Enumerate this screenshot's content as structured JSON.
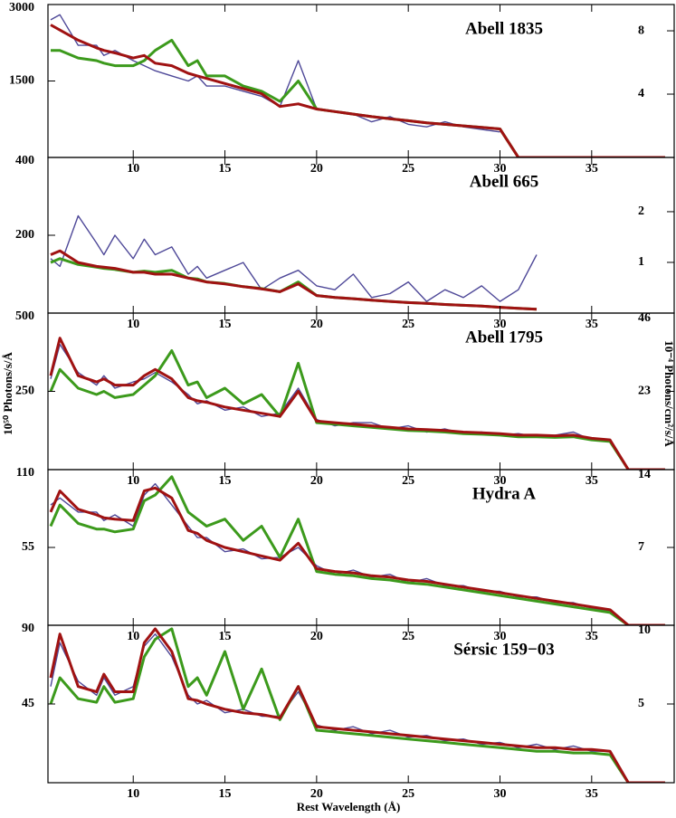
{
  "xlabel": "Rest Wavelength (Å)",
  "ylabel": "10⁵⁰ Photons/s/Å",
  "y2label": "10⁻⁴ Photons/cm²/s/Å",
  "chart_data": [
    {
      "type": "line",
      "title": "Abell 1835",
      "x": [
        5.5,
        6,
        7,
        8,
        8.4,
        9,
        10,
        10.6,
        11.2,
        12.1,
        13,
        13.5,
        14,
        15,
        16,
        17,
        18,
        19,
        20,
        21,
        22,
        23,
        24,
        25,
        26,
        27,
        28,
        29,
        30,
        31,
        32,
        33,
        34,
        35,
        36,
        37,
        39
      ],
      "xlim": [
        5.35,
        39.5
      ],
      "xticks": [
        10,
        15,
        20,
        25,
        30,
        35
      ],
      "ylim": [
        0,
        3000
      ],
      "yticks": [
        1500,
        3000
      ],
      "y2lim": [
        0,
        9.66
      ],
      "y2ticks": [
        4,
        8
      ],
      "series": [
        {
          "color": "#4e4898",
          "values": [
            2700,
            2800,
            2200,
            2200,
            2000,
            2100,
            1900,
            1800,
            1700,
            1600,
            1500,
            1600,
            1400,
            1400,
            1300,
            1200,
            1000,
            1900,
            950,
            900,
            850,
            700,
            800,
            650,
            600,
            700,
            600,
            550,
            500,
            null,
            null,
            null,
            null,
            null,
            null,
            null,
            null
          ]
        },
        {
          "color": "#3c9a1c",
          "values": [
            2100,
            2100,
            1950,
            1900,
            1850,
            1800,
            1800,
            1900,
            2100,
            2300,
            1800,
            1900,
            1600,
            1600,
            1400,
            1300,
            1100,
            1500,
            950,
            900,
            850,
            800,
            760,
            720,
            680,
            650,
            620,
            590,
            560,
            0,
            0,
            0,
            0,
            0,
            0,
            0,
            0
          ]
        },
        {
          "color": "#a01212",
          "values": [
            2600,
            2500,
            2300,
            2150,
            2100,
            2050,
            1950,
            2000,
            1850,
            1800,
            1650,
            1600,
            1550,
            1450,
            1350,
            1250,
            1000,
            1050,
            950,
            900,
            850,
            800,
            760,
            720,
            680,
            650,
            620,
            590,
            560,
            0,
            0,
            0,
            0,
            0,
            0,
            0,
            0
          ]
        }
      ]
    },
    {
      "type": "line",
      "title": "Abell 665",
      "x": [
        5.5,
        6,
        7,
        8,
        8.4,
        9,
        10,
        10.6,
        11.2,
        12.1,
        13,
        13.5,
        14,
        15,
        16,
        17,
        18,
        19,
        20,
        21,
        22,
        23,
        24,
        25,
        26,
        27,
        28,
        29,
        30,
        31,
        32,
        33,
        34,
        35,
        36,
        37,
        39
      ],
      "xlim": [
        5.35,
        39.5
      ],
      "xticks": [
        10,
        15,
        20,
        25,
        30,
        35
      ],
      "ylim": [
        0,
        400
      ],
      "yticks": [
        200,
        400
      ],
      "y2lim": [
        0,
        3.07
      ],
      "y2ticks": [
        1,
        2
      ],
      "series": [
        {
          "color": "#4e4898",
          "values": [
            140,
            120,
            250,
            180,
            150,
            200,
            140,
            190,
            150,
            170,
            100,
            120,
            90,
            110,
            130,
            60,
            90,
            110,
            70,
            60,
            100,
            40,
            50,
            80,
            30,
            60,
            40,
            70,
            30,
            60,
            150,
            null,
            null,
            null,
            null,
            null,
            null
          ]
        },
        {
          "color": "#3c9a1c",
          "values": [
            130,
            140,
            125,
            118,
            115,
            112,
            105,
            108,
            105,
            110,
            90,
            88,
            80,
            76,
            68,
            63,
            55,
            80,
            45,
            40,
            37,
            33,
            30,
            27,
            25,
            22,
            20,
            18,
            15,
            12,
            10,
            null,
            null,
            null,
            null,
            null,
            null
          ]
        },
        {
          "color": "#a01212",
          "values": [
            150,
            160,
            130,
            120,
            118,
            115,
            105,
            105,
            100,
            100,
            90,
            85,
            80,
            75,
            68,
            62,
            55,
            75,
            45,
            40,
            37,
            33,
            30,
            27,
            25,
            22,
            20,
            18,
            15,
            12,
            10,
            null,
            null,
            null,
            null,
            null,
            null
          ]
        }
      ]
    },
    {
      "type": "line",
      "title": "Abell 1795",
      "x": [
        5.5,
        6,
        7,
        8,
        8.4,
        9,
        10,
        10.6,
        11.2,
        12.1,
        13,
        13.5,
        14,
        15,
        16,
        17,
        18,
        19,
        20,
        21,
        22,
        23,
        24,
        25,
        26,
        27,
        28,
        29,
        30,
        31,
        32,
        33,
        34,
        35,
        36,
        37,
        39
      ],
      "xlim": [
        5.35,
        39.5
      ],
      "xticks": [
        10,
        15,
        20,
        25,
        30,
        35
      ],
      "ylim": [
        0,
        500
      ],
      "yticks": [
        250,
        500
      ],
      "y2lim": [
        0,
        46
      ],
      "y2ticks": [
        23,
        46
      ],
      "series": [
        {
          "color": "#4e4898",
          "values": [
            290,
            400,
            310,
            270,
            300,
            260,
            280,
            290,
            310,
            280,
            240,
            210,
            220,
            190,
            200,
            170,
            180,
            260,
            160,
            140,
            150,
            150,
            130,
            140,
            120,
            130,
            115,
            120,
            110,
            115,
            105,
            110,
            120,
            95,
            90,
            null,
            null
          ]
        },
        {
          "color": "#3c9a1c",
          "values": [
            250,
            320,
            260,
            240,
            250,
            230,
            240,
            270,
            300,
            380,
            270,
            280,
            230,
            260,
            210,
            240,
            170,
            340,
            150,
            145,
            140,
            135,
            130,
            125,
            123,
            120,
            115,
            113,
            110,
            105,
            105,
            103,
            105,
            95,
            90,
            0,
            0
          ]
        },
        {
          "color": "#a01212",
          "values": [
            300,
            420,
            300,
            280,
            290,
            270,
            270,
            300,
            320,
            290,
            230,
            220,
            215,
            200,
            190,
            180,
            170,
            250,
            155,
            150,
            145,
            140,
            135,
            130,
            128,
            125,
            120,
            118,
            115,
            110,
            110,
            108,
            110,
            100,
            95,
            0,
            0
          ]
        }
      ]
    },
    {
      "type": "line",
      "title": "Hydra A",
      "x": [
        5.5,
        6,
        7,
        8,
        8.4,
        9,
        10,
        10.6,
        11.2,
        12.1,
        13,
        13.5,
        14,
        15,
        16,
        17,
        18,
        19,
        20,
        21,
        22,
        23,
        24,
        25,
        26,
        27,
        28,
        29,
        30,
        31,
        32,
        33,
        34,
        35,
        36,
        37,
        39
      ],
      "xlim": [
        5.35,
        39.5
      ],
      "xticks": [
        10,
        15,
        20,
        25,
        30,
        35
      ],
      "ylim": [
        0,
        110
      ],
      "yticks": [
        55,
        110
      ],
      "y2lim": [
        0,
        14
      ],
      "y2ticks": [
        7,
        14
      ],
      "series": [
        {
          "color": "#4e4898",
          "values": [
            85,
            90,
            80,
            80,
            74,
            78,
            70,
            92,
            100,
            85,
            70,
            62,
            62,
            52,
            54,
            47,
            48,
            55,
            42,
            36,
            39,
            34,
            36,
            30,
            33,
            28,
            28,
            24,
            24,
            20,
            20,
            16,
            16,
            12,
            10,
            null,
            null
          ]
        },
        {
          "color": "#3c9a1c",
          "values": [
            70,
            85,
            72,
            68,
            68,
            66,
            68,
            88,
            92,
            105,
            80,
            75,
            70,
            75,
            60,
            70,
            48,
            75,
            38,
            36,
            35,
            33,
            32,
            30,
            29,
            27,
            25,
            23,
            21,
            19,
            17,
            15,
            13,
            11,
            9,
            0,
            0
          ]
        },
        {
          "color": "#a01212",
          "values": [
            80,
            95,
            82,
            78,
            76,
            75,
            74,
            95,
            97,
            90,
            67,
            65,
            60,
            55,
            52,
            49,
            46,
            58,
            40,
            38,
            37,
            35,
            34,
            32,
            31,
            29,
            27,
            25,
            23,
            21,
            19,
            17,
            15,
            13,
            11,
            0,
            0
          ]
        }
      ]
    },
    {
      "type": "line",
      "title": "Sérsic 159−03",
      "x": [
        5.5,
        6,
        7,
        8,
        8.4,
        9,
        10,
        10.6,
        11.2,
        12.1,
        13,
        13.5,
        14,
        15,
        16,
        17,
        18,
        19,
        20,
        21,
        22,
        23,
        24,
        25,
        26,
        27,
        28,
        29,
        30,
        31,
        32,
        33,
        34,
        35,
        36,
        37,
        39
      ],
      "xlim": [
        5.35,
        39.5
      ],
      "xticks": [
        10,
        15,
        20,
        25,
        30,
        35
      ],
      "ylim": [
        0,
        90
      ],
      "yticks": [
        45,
        90
      ],
      "y2lim": [
        0,
        10
      ],
      "y2ticks": [
        5,
        10
      ],
      "series": [
        {
          "color": "#4e4898",
          "values": [
            55,
            80,
            58,
            50,
            60,
            50,
            55,
            78,
            85,
            72,
            50,
            45,
            47,
            40,
            42,
            38,
            38,
            52,
            33,
            30,
            32,
            28,
            30,
            26,
            27,
            24,
            25,
            22,
            23,
            20,
            22,
            19,
            21,
            18,
            18,
            null,
            null
          ]
        },
        {
          "color": "#3c9a1c",
          "values": [
            45,
            60,
            48,
            46,
            55,
            46,
            48,
            72,
            82,
            88,
            55,
            60,
            50,
            75,
            42,
            65,
            36,
            55,
            30,
            29,
            28,
            27,
            26,
            25,
            24,
            23,
            22,
            21,
            20,
            19,
            18,
            18,
            17,
            17,
            16,
            0,
            0
          ]
        },
        {
          "color": "#a01212",
          "values": [
            60,
            85,
            55,
            52,
            62,
            52,
            52,
            80,
            88,
            75,
            48,
            47,
            45,
            42,
            40,
            39,
            37,
            55,
            32,
            31,
            30,
            29,
            28,
            27,
            26,
            25,
            24,
            23,
            22,
            21,
            20,
            20,
            19,
            19,
            18,
            0,
            0
          ]
        }
      ]
    }
  ]
}
